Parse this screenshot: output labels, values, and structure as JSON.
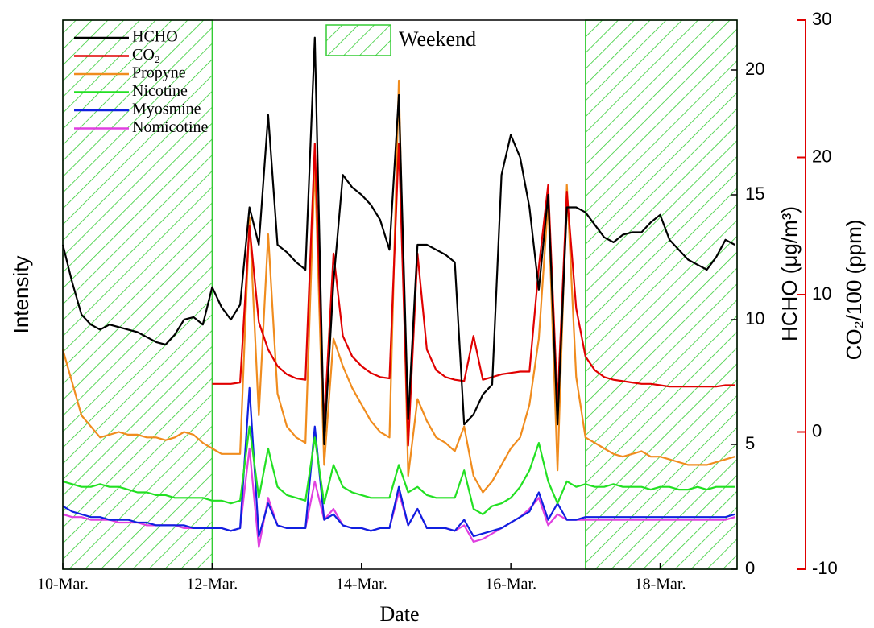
{
  "chart_data": {
    "type": "line",
    "xlabel": "Date",
    "ylabel": "Intensity",
    "y2label": "HCHO (μg/m³)",
    "y3label": "CO₂/100 (ppm)",
    "y3color": "#e00000",
    "xlim": [
      10,
      19.03
    ],
    "xticks": [
      {
        "value": 10,
        "label": "10-Mar."
      },
      {
        "value": 12,
        "label": "12-Mar."
      },
      {
        "value": 14,
        "label": "14-Mar."
      },
      {
        "value": 16,
        "label": "16-Mar."
      },
      {
        "value": 18,
        "label": "18-Mar."
      }
    ],
    "ylim": [
      0,
      10
    ],
    "y2lim": [
      0,
      22
    ],
    "y2ticks": [
      0,
      5,
      10,
      15,
      20
    ],
    "y3lim": [
      -10,
      30
    ],
    "y3ticks": [
      -10,
      0,
      10,
      20,
      30
    ],
    "shaded": {
      "label": "Weekend",
      "color": "#33cc33",
      "ranges": [
        [
          10,
          12
        ],
        [
          17,
          19.03
        ]
      ]
    },
    "x": [
      10,
      10.125,
      10.25,
      10.375,
      10.5,
      10.625,
      10.75,
      10.875,
      11,
      11.125,
      11.25,
      11.375,
      11.5,
      11.625,
      11.75,
      11.875,
      12,
      12.125,
      12.25,
      12.375,
      12.5,
      12.625,
      12.75,
      12.875,
      13,
      13.125,
      13.25,
      13.375,
      13.5,
      13.625,
      13.75,
      13.875,
      14,
      14.125,
      14.25,
      14.375,
      14.5,
      14.625,
      14.75,
      14.875,
      15,
      15.125,
      15.25,
      15.375,
      15.5,
      15.625,
      15.75,
      15.875,
      16,
      16.125,
      16.25,
      16.375,
      16.5,
      16.625,
      16.75,
      16.875,
      17,
      17.125,
      17.25,
      17.375,
      17.5,
      17.625,
      17.75,
      17.875,
      18,
      18.125,
      18.25,
      18.375,
      18.5,
      18.625,
      18.75,
      18.875,
      19
    ],
    "series": [
      {
        "name": "HCHO",
        "color": "#000000",
        "axis": "y2",
        "values": [
          13,
          11.5,
          10.2,
          9.8,
          9.6,
          9.8,
          9.7,
          9.6,
          9.5,
          9.3,
          9.1,
          9.0,
          9.4,
          10.0,
          10.1,
          9.8,
          11.3,
          10.5,
          10.0,
          10.6,
          14.5,
          13.0,
          18.2,
          13.0,
          12.7,
          12.3,
          12.0,
          21.3,
          5.0,
          11.5,
          15.8,
          15.3,
          15.0,
          14.6,
          14.0,
          12.8,
          19.0,
          6.0,
          13.0,
          13.0,
          12.8,
          12.6,
          12.3,
          5.8,
          6.2,
          7.0,
          7.4,
          15.8,
          17.4,
          16.5,
          14.5,
          11.2,
          15.0,
          5.8,
          14.5,
          14.5,
          14.3,
          13.8,
          13.3,
          13.1,
          13.4,
          13.5,
          13.5,
          13.9,
          14.2,
          13.2,
          12.8,
          12.4,
          12.2,
          12.0,
          12.5,
          13.2,
          13.0
        ]
      },
      {
        "name": "CO₂",
        "color": "#e00000",
        "axis": "y3",
        "values": [
          null,
          null,
          null,
          null,
          null,
          null,
          null,
          null,
          null,
          null,
          null,
          null,
          null,
          null,
          null,
          null,
          3.5,
          3.5,
          3.5,
          3.6,
          15.0,
          8.0,
          6.0,
          4.8,
          4.2,
          3.9,
          3.8,
          21.0,
          0.5,
          13.0,
          7.0,
          5.5,
          4.8,
          4.3,
          4.0,
          3.9,
          21.0,
          -1.0,
          13.0,
          6.0,
          4.5,
          4.0,
          3.8,
          3.7,
          7.0,
          3.8,
          4.0,
          4.2,
          4.3,
          4.4,
          4.4,
          12.0,
          18.0,
          2.0,
          17.5,
          9.0,
          5.5,
          4.5,
          4.0,
          3.8,
          3.7,
          3.6,
          3.5,
          3.5,
          3.4,
          3.3,
          3.3,
          3.3,
          3.3,
          3.3,
          3.3,
          3.4,
          3.4
        ]
      },
      {
        "name": "Propyne",
        "color": "#f08c1e",
        "values": [
          4.0,
          3.4,
          2.8,
          2.6,
          2.4,
          2.45,
          2.5,
          2.45,
          2.45,
          2.4,
          2.4,
          2.35,
          2.4,
          2.5,
          2.45,
          2.3,
          2.2,
          2.1,
          2.1,
          2.1,
          6.4,
          2.8,
          6.1,
          3.2,
          2.6,
          2.4,
          2.3,
          7.4,
          1.9,
          4.2,
          3.7,
          3.3,
          3.0,
          2.7,
          2.5,
          2.4,
          8.9,
          1.7,
          3.1,
          2.7,
          2.4,
          2.3,
          2.15,
          2.6,
          1.7,
          1.4,
          1.6,
          1.9,
          2.2,
          2.4,
          3.0,
          4.2,
          6.7,
          1.8,
          7.0,
          3.5,
          2.4,
          2.3,
          2.2,
          2.1,
          2.05,
          2.1,
          2.15,
          2.05,
          2.05,
          2.0,
          1.95,
          1.9,
          1.9,
          1.9,
          1.95,
          2.0,
          2.05
        ]
      },
      {
        "name": "Nicotine",
        "color": "#22e022",
        "values": [
          1.6,
          1.55,
          1.5,
          1.5,
          1.55,
          1.5,
          1.5,
          1.45,
          1.4,
          1.4,
          1.35,
          1.35,
          1.3,
          1.3,
          1.3,
          1.3,
          1.25,
          1.25,
          1.2,
          1.25,
          2.6,
          1.3,
          2.2,
          1.5,
          1.35,
          1.3,
          1.25,
          2.4,
          1.2,
          1.9,
          1.5,
          1.4,
          1.35,
          1.3,
          1.3,
          1.3,
          1.9,
          1.4,
          1.5,
          1.35,
          1.3,
          1.3,
          1.3,
          1.8,
          1.1,
          1.0,
          1.15,
          1.2,
          1.3,
          1.5,
          1.8,
          2.3,
          1.6,
          1.2,
          1.6,
          1.5,
          1.55,
          1.5,
          1.5,
          1.55,
          1.5,
          1.5,
          1.5,
          1.45,
          1.5,
          1.5,
          1.45,
          1.45,
          1.5,
          1.45,
          1.5,
          1.5,
          1.5
        ]
      },
      {
        "name": "Myosmine",
        "color": "#1020e0",
        "values": [
          1.15,
          1.05,
          1.0,
          0.95,
          0.95,
          0.9,
          0.9,
          0.9,
          0.85,
          0.85,
          0.8,
          0.8,
          0.8,
          0.8,
          0.75,
          0.75,
          0.75,
          0.75,
          0.7,
          0.75,
          3.3,
          0.6,
          1.2,
          0.8,
          0.75,
          0.75,
          0.75,
          2.6,
          0.9,
          1.0,
          0.8,
          0.75,
          0.75,
          0.7,
          0.75,
          0.75,
          1.5,
          0.8,
          1.1,
          0.75,
          0.75,
          0.75,
          0.7,
          0.9,
          0.6,
          0.65,
          0.7,
          0.75,
          0.85,
          0.95,
          1.05,
          1.4,
          0.9,
          1.2,
          0.9,
          0.9,
          0.95,
          0.95,
          0.95,
          0.95,
          0.95,
          0.95,
          0.95,
          0.95,
          0.95,
          0.95,
          0.95,
          0.95,
          0.95,
          0.95,
          0.95,
          0.95,
          1.0
        ]
      },
      {
        "name": "Nomicotine",
        "color": "#e040e0",
        "values": [
          1.0,
          0.95,
          0.95,
          0.9,
          0.9,
          0.9,
          0.85,
          0.85,
          0.85,
          0.8,
          0.8,
          0.8,
          0.8,
          0.75,
          0.75,
          0.75,
          0.75,
          0.75,
          0.7,
          0.75,
          2.2,
          0.4,
          1.3,
          0.8,
          0.75,
          0.75,
          0.75,
          1.6,
          0.9,
          1.1,
          0.8,
          0.75,
          0.75,
          0.7,
          0.75,
          0.75,
          1.4,
          0.8,
          1.1,
          0.75,
          0.75,
          0.75,
          0.7,
          0.8,
          0.5,
          0.55,
          0.65,
          0.75,
          0.85,
          0.95,
          1.1,
          1.3,
          0.8,
          1.0,
          0.9,
          0.9,
          0.9,
          0.9,
          0.9,
          0.9,
          0.9,
          0.9,
          0.9,
          0.9,
          0.9,
          0.9,
          0.9,
          0.9,
          0.9,
          0.9,
          0.9,
          0.9,
          0.95
        ]
      }
    ]
  }
}
